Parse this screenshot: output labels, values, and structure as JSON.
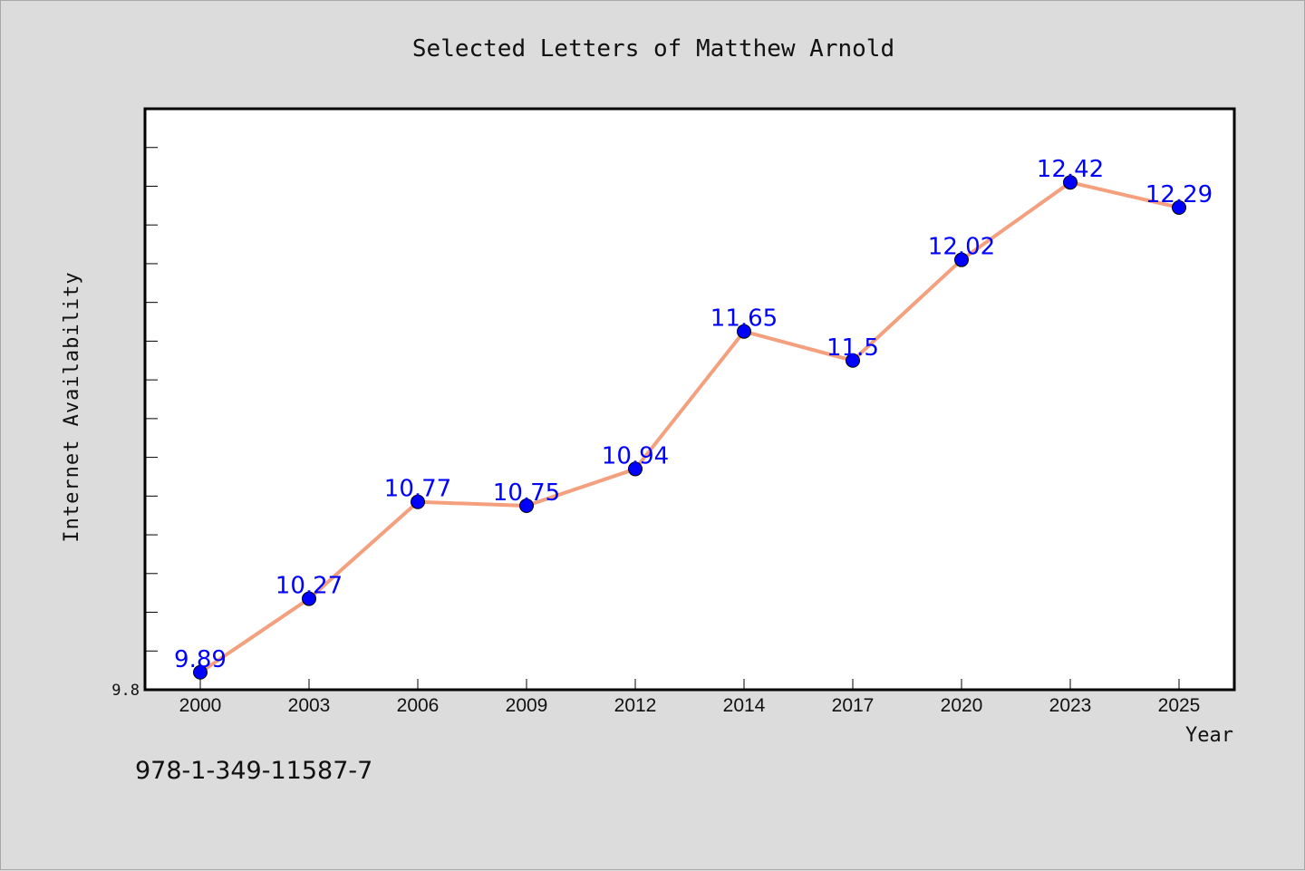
{
  "chart_data": {
    "type": "line",
    "title": "Selected Letters of Matthew Arnold",
    "xlabel": "Year",
    "ylabel": "Internet Availability",
    "categories": [
      "2000",
      "2003",
      "2006",
      "2009",
      "2012",
      "2014",
      "2017",
      "2020",
      "2023",
      "2025"
    ],
    "values": [
      9.89,
      10.27,
      10.77,
      10.75,
      10.94,
      11.65,
      11.5,
      12.02,
      12.42,
      12.29
    ],
    "data_labels": [
      "9.89",
      "10.27",
      "10.77",
      "10.75",
      "10.94",
      "11.65",
      "11.5",
      "12.02",
      "12.42",
      "12.29"
    ],
    "ytick_labels": [
      "9.8"
    ],
    "ylim": [
      9.8,
      12.8
    ],
    "grid": false,
    "legend": "none",
    "line_color": "#f4a07e",
    "marker_color": "#0000ff",
    "label_color": "#0000ff"
  },
  "footer_text": "978-1-349-11587-7"
}
